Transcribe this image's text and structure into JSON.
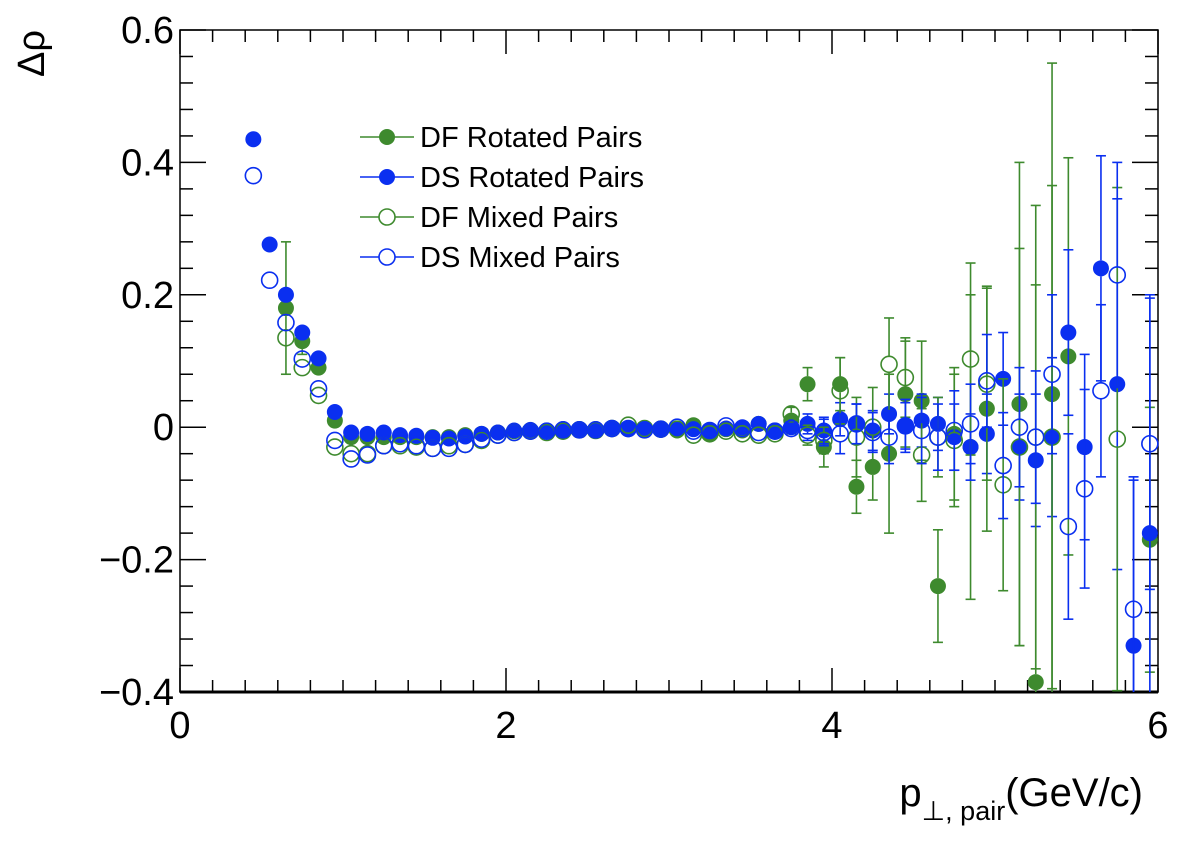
{
  "chart_data": {
    "type": "scatter",
    "title": "",
    "xlabel": "p⊥, pair(GeV/c)",
    "xlabel_main": "p",
    "xlabel_sub": "⊥, pair",
    "xlabel_unit": "(GeV/c)",
    "ylabel": "Δρ",
    "xlim": [
      0,
      6
    ],
    "ylim": [
      -0.4,
      0.6
    ],
    "x_ticks": [
      "0",
      "2",
      "4",
      "6"
    ],
    "y_ticks": [
      "−0.4",
      "−0.2",
      "0",
      "0.2",
      "0.4",
      "0.6"
    ],
    "grid": false,
    "legend_position": "top-left",
    "series": [
      {
        "name": "DF Rotated Pairs",
        "color": "#3e8a2e",
        "marker": "filled-circle",
        "points": [
          [
            0.65,
            0.18,
            0.1
          ],
          [
            0.75,
            0.13,
            0.02
          ],
          [
            0.85,
            0.09,
            0.01
          ],
          [
            0.95,
            0.01,
            0.01
          ],
          [
            1.05,
            -0.015,
            0.005
          ],
          [
            1.15,
            -0.015,
            0.005
          ],
          [
            1.25,
            -0.015,
            0.005
          ],
          [
            1.35,
            -0.015,
            0.005
          ],
          [
            1.45,
            -0.015,
            0.005
          ],
          [
            1.55,
            -0.015,
            0.005
          ],
          [
            1.65,
            -0.015,
            0.005
          ],
          [
            1.75,
            -0.012,
            0.005
          ],
          [
            1.85,
            -0.01,
            0.005
          ],
          [
            1.95,
            -0.008,
            0.005
          ],
          [
            2.05,
            -0.006,
            0.005
          ],
          [
            2.15,
            -0.005,
            0.005
          ],
          [
            2.25,
            -0.005,
            0.005
          ],
          [
            2.35,
            -0.004,
            0.005
          ],
          [
            2.45,
            -0.003,
            0.005
          ],
          [
            2.55,
            -0.003,
            0.005
          ],
          [
            2.65,
            -0.002,
            0.005
          ],
          [
            2.75,
            -0.003,
            0.005
          ],
          [
            2.85,
            -0.003,
            0.005
          ],
          [
            2.95,
            -0.002,
            0.005
          ],
          [
            3.05,
            -0.005,
            0.006
          ],
          [
            3.15,
            0.003,
            0.008
          ],
          [
            3.25,
            -0.01,
            0.008
          ],
          [
            3.35,
            -0.003,
            0.008
          ],
          [
            3.45,
            -0.005,
            0.008
          ],
          [
            3.55,
            0.005,
            0.01
          ],
          [
            3.65,
            -0.005,
            0.01
          ],
          [
            3.75,
            0.01,
            0.02
          ],
          [
            3.85,
            0.065,
            0.025
          ],
          [
            3.95,
            -0.03,
            0.03
          ],
          [
            4.05,
            0.065,
            0.04
          ],
          [
            4.15,
            -0.09,
            0.04
          ],
          [
            4.25,
            -0.06,
            0.05
          ],
          [
            4.35,
            -0.04,
            0.12
          ],
          [
            4.45,
            0.05,
            0.08
          ],
          [
            4.55,
            0.04,
            0.09
          ],
          [
            4.65,
            -0.24,
            0.085
          ],
          [
            4.75,
            -0.01,
            0.1
          ],
          [
            4.85,
            -0.03,
            0.23
          ],
          [
            4.95,
            0.028,
            0.185
          ],
          [
            5.15,
            0.035,
            0.365
          ],
          [
            5.25,
            -0.385,
            0.6
          ],
          [
            5.35,
            0.05,
            0.5
          ],
          [
            5.45,
            0.107,
            0.3
          ],
          [
            5.95,
            -0.17,
            0.2
          ]
        ]
      },
      {
        "name": "DS Rotated Pairs",
        "color": "#0a2ff0",
        "marker": "filled-circle",
        "points": [
          [
            0.45,
            0.435,
            0.0
          ],
          [
            0.55,
            0.276,
            0.0
          ],
          [
            0.65,
            0.2,
            0.0
          ],
          [
            0.75,
            0.143,
            0.0
          ],
          [
            0.85,
            0.104,
            0.0
          ],
          [
            0.95,
            0.023,
            0.0
          ],
          [
            1.05,
            -0.008,
            0.005
          ],
          [
            1.15,
            -0.01,
            0.005
          ],
          [
            1.25,
            -0.008,
            0.005
          ],
          [
            1.35,
            -0.012,
            0.005
          ],
          [
            1.45,
            -0.013,
            0.005
          ],
          [
            1.55,
            -0.016,
            0.005
          ],
          [
            1.65,
            -0.017,
            0.005
          ],
          [
            1.75,
            -0.014,
            0.005
          ],
          [
            1.85,
            -0.01,
            0.005
          ],
          [
            1.95,
            -0.008,
            0.005
          ],
          [
            2.05,
            -0.005,
            0.005
          ],
          [
            2.15,
            -0.004,
            0.005
          ],
          [
            2.25,
            -0.005,
            0.005
          ],
          [
            2.35,
            -0.003,
            0.005
          ],
          [
            2.45,
            -0.004,
            0.005
          ],
          [
            2.55,
            -0.003,
            0.005
          ],
          [
            2.65,
            -0.002,
            0.005
          ],
          [
            2.75,
            -0.003,
            0.005
          ],
          [
            2.85,
            -0.004,
            0.005
          ],
          [
            2.95,
            -0.003,
            0.005
          ],
          [
            3.05,
            -0.002,
            0.006
          ],
          [
            3.15,
            -0.003,
            0.008
          ],
          [
            3.25,
            -0.005,
            0.008
          ],
          [
            3.35,
            -0.002,
            0.008
          ],
          [
            3.45,
            0.0,
            0.008
          ],
          [
            3.55,
            0.005,
            0.01
          ],
          [
            3.65,
            -0.005,
            0.01
          ],
          [
            3.75,
            0.0,
            0.012
          ],
          [
            3.85,
            0.005,
            0.015
          ],
          [
            3.95,
            -0.005,
            0.02
          ],
          [
            4.05,
            0.012,
            0.025
          ],
          [
            4.15,
            0.005,
            0.03
          ],
          [
            4.25,
            -0.005,
            0.03
          ],
          [
            4.35,
            0.02,
            0.03
          ],
          [
            4.45,
            0.002,
            0.035
          ],
          [
            4.55,
            0.01,
            0.04
          ],
          [
            4.65,
            0.005,
            0.04
          ],
          [
            4.75,
            -0.015,
            0.05
          ],
          [
            4.85,
            -0.03,
            0.05
          ],
          [
            4.95,
            -0.01,
            0.06
          ],
          [
            5.05,
            0.073,
            0.07
          ],
          [
            5.15,
            -0.03,
            0.08
          ],
          [
            5.25,
            -0.05,
            0.1
          ],
          [
            5.35,
            -0.015,
            0.12
          ],
          [
            5.45,
            0.143,
            0.125
          ],
          [
            5.55,
            -0.03,
            0.14
          ],
          [
            5.65,
            0.24,
            0.17
          ],
          [
            5.75,
            0.065,
            0.28
          ],
          [
            5.85,
            -0.33,
            0.25
          ],
          [
            5.95,
            -0.16,
            0.36
          ]
        ]
      },
      {
        "name": "DF Mixed Pairs",
        "color": "#3e8a2e",
        "marker": "open-circle",
        "points": [
          [
            0.65,
            0.135,
            0.0
          ],
          [
            0.75,
            0.09,
            0.0
          ],
          [
            0.85,
            0.048,
            0.0
          ],
          [
            0.95,
            -0.03,
            0.0
          ],
          [
            1.05,
            -0.04,
            0.005
          ],
          [
            1.15,
            -0.04,
            0.005
          ],
          [
            1.25,
            -0.028,
            0.005
          ],
          [
            1.35,
            -0.028,
            0.005
          ],
          [
            1.45,
            -0.03,
            0.005
          ],
          [
            1.55,
            -0.032,
            0.005
          ],
          [
            1.65,
            -0.028,
            0.005
          ],
          [
            1.75,
            -0.026,
            0.005
          ],
          [
            1.85,
            -0.02,
            0.005
          ],
          [
            1.95,
            -0.012,
            0.005
          ],
          [
            2.05,
            -0.008,
            0.005
          ],
          [
            2.15,
            -0.006,
            0.005
          ],
          [
            2.25,
            -0.008,
            0.005
          ],
          [
            2.35,
            -0.006,
            0.005
          ],
          [
            2.45,
            -0.004,
            0.005
          ],
          [
            2.55,
            -0.005,
            0.005
          ],
          [
            2.65,
            -0.002,
            0.005
          ],
          [
            2.75,
            0.003,
            0.005
          ],
          [
            2.85,
            -0.002,
            0.005
          ],
          [
            2.95,
            -0.003,
            0.005
          ],
          [
            3.05,
            -0.003,
            0.006
          ],
          [
            3.15,
            -0.012,
            0.008
          ],
          [
            3.25,
            -0.01,
            0.008
          ],
          [
            3.35,
            -0.006,
            0.008
          ],
          [
            3.45,
            -0.01,
            0.008
          ],
          [
            3.55,
            -0.012,
            0.01
          ],
          [
            3.65,
            -0.01,
            0.01
          ],
          [
            3.75,
            0.02,
            0.012
          ],
          [
            3.85,
            -0.012,
            0.015
          ],
          [
            3.95,
            -0.02,
            0.02
          ],
          [
            4.05,
            0.055,
            0.05
          ],
          [
            4.15,
            -0.015,
            0.06
          ],
          [
            4.25,
            0.0,
            0.06
          ],
          [
            4.35,
            0.095,
            0.07
          ],
          [
            4.45,
            0.075,
            0.06
          ],
          [
            4.55,
            -0.042,
            0.07
          ],
          [
            4.65,
            -0.015,
            0.06
          ],
          [
            4.75,
            -0.02,
            0.1
          ],
          [
            4.85,
            0.103,
            0.145
          ],
          [
            4.95,
            0.065,
            0.145
          ],
          [
            5.05,
            -0.087,
            0.16
          ],
          [
            5.15,
            -0.03,
            0.3
          ],
          [
            5.25,
            -0.015,
            0.35
          ],
          [
            5.35,
            -0.015,
            0.38
          ],
          [
            5.75,
            -0.018,
            0.38
          ]
        ]
      },
      {
        "name": "DS Mixed Pairs",
        "color": "#0a2ff0",
        "marker": "open-circle",
        "points": [
          [
            0.45,
            0.38,
            0.0
          ],
          [
            0.55,
            0.222,
            0.0
          ],
          [
            0.65,
            0.158,
            0.0
          ],
          [
            0.75,
            0.103,
            0.0
          ],
          [
            0.85,
            0.058,
            0.0
          ],
          [
            0.95,
            -0.02,
            0.0
          ],
          [
            1.05,
            -0.048,
            0.005
          ],
          [
            1.15,
            -0.042,
            0.005
          ],
          [
            1.25,
            -0.028,
            0.005
          ],
          [
            1.35,
            -0.025,
            0.005
          ],
          [
            1.45,
            -0.028,
            0.005
          ],
          [
            1.55,
            -0.032,
            0.005
          ],
          [
            1.65,
            -0.032,
            0.005
          ],
          [
            1.75,
            -0.026,
            0.005
          ],
          [
            1.85,
            -0.018,
            0.005
          ],
          [
            1.95,
            -0.012,
            0.005
          ],
          [
            2.05,
            -0.008,
            0.005
          ],
          [
            2.15,
            -0.006,
            0.005
          ],
          [
            2.25,
            -0.006,
            0.005
          ],
          [
            2.35,
            -0.004,
            0.005
          ],
          [
            2.45,
            -0.004,
            0.005
          ],
          [
            2.55,
            -0.004,
            0.005
          ],
          [
            2.65,
            -0.002,
            0.005
          ],
          [
            2.75,
            -0.002,
            0.005
          ],
          [
            2.85,
            -0.004,
            0.005
          ],
          [
            2.95,
            -0.003,
            0.005
          ],
          [
            3.05,
            0.0,
            0.006
          ],
          [
            3.15,
            -0.006,
            0.008
          ],
          [
            3.25,
            -0.005,
            0.008
          ],
          [
            3.35,
            0.002,
            0.008
          ],
          [
            3.45,
            -0.002,
            0.008
          ],
          [
            3.55,
            -0.008,
            0.01
          ],
          [
            3.65,
            -0.006,
            0.01
          ],
          [
            3.75,
            -0.002,
            0.012
          ],
          [
            3.85,
            -0.005,
            0.015
          ],
          [
            3.95,
            -0.008,
            0.02
          ],
          [
            4.05,
            -0.01,
            0.03
          ],
          [
            4.15,
            0.005,
            0.03
          ],
          [
            4.25,
            -0.008,
            0.03
          ],
          [
            4.35,
            -0.015,
            0.04
          ],
          [
            4.45,
            0.002,
            0.04
          ],
          [
            4.55,
            -0.005,
            0.05
          ],
          [
            4.65,
            -0.015,
            0.05
          ],
          [
            4.75,
            -0.005,
            0.06
          ],
          [
            4.85,
            0.005,
            0.06
          ],
          [
            4.95,
            0.07,
            0.07
          ],
          [
            5.05,
            -0.058,
            0.08
          ],
          [
            5.15,
            0.0,
            0.09
          ],
          [
            5.25,
            -0.015,
            0.1
          ],
          [
            5.35,
            0.08,
            0.12
          ],
          [
            5.45,
            -0.15,
            0.14
          ],
          [
            5.55,
            -0.093,
            0.15
          ],
          [
            5.65,
            0.055,
            0.13
          ],
          [
            5.75,
            0.23,
            0.17
          ],
          [
            5.85,
            -0.275,
            0.2
          ],
          [
            5.95,
            -0.025,
            0.22
          ]
        ]
      }
    ]
  }
}
